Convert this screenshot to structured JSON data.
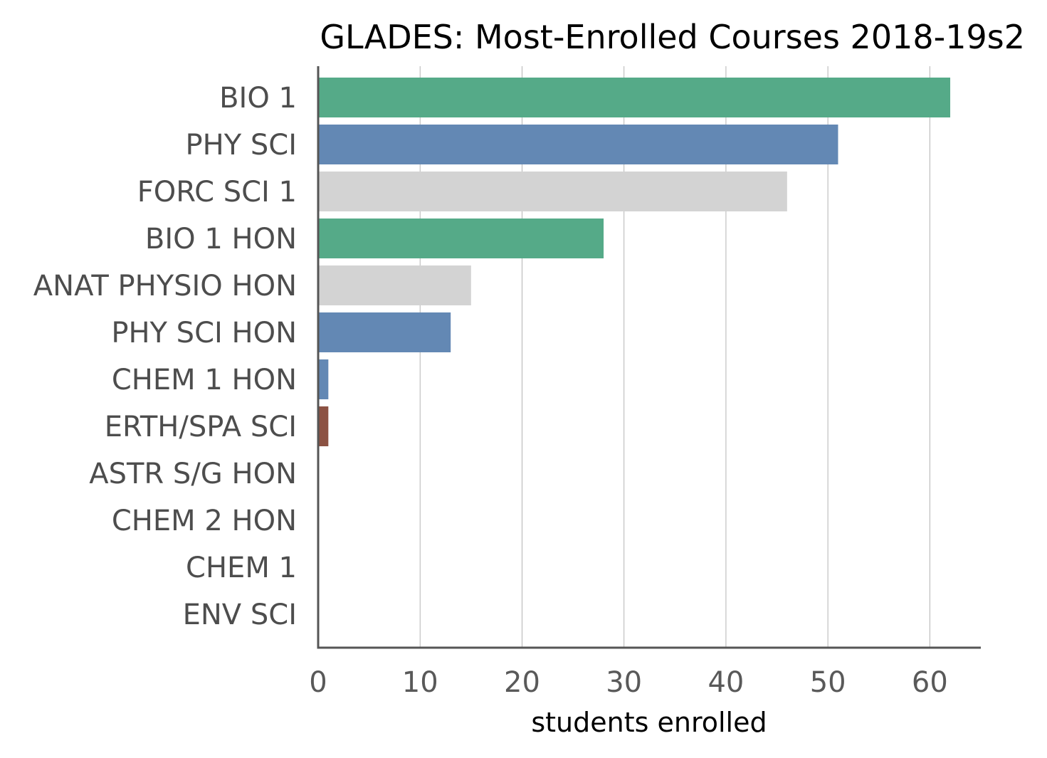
{
  "chart_data": {
    "type": "bar",
    "orientation": "horizontal",
    "title": "GLADES: Most-Enrolled Courses 2018-19s2",
    "xlabel": "students enrolled",
    "ylabel": "",
    "xlim": [
      0,
      65
    ],
    "xticks": [
      0,
      10,
      20,
      30,
      40,
      50,
      60
    ],
    "grid": "vertical",
    "categories": [
      "BIO 1",
      "PHY SCI",
      "FORC SCI 1",
      "BIO 1 HON",
      "ANAT PHYSIO HON",
      "PHY SCI HON",
      "CHEM 1 HON",
      "ERTH/SPA SCI",
      "ASTR S/G HON",
      "CHEM 2 HON",
      "CHEM 1",
      "ENV SCI"
    ],
    "values": [
      62,
      51,
      46,
      28,
      15,
      13,
      1,
      1,
      0,
      0,
      0,
      0
    ],
    "colors": [
      "#55aa88",
      "#6388b4",
      "#d3d3d3",
      "#55aa88",
      "#d3d3d3",
      "#6388b4",
      "#6388b4",
      "#8c5243",
      "#ffffff",
      "#ffffff",
      "#ffffff",
      "#ffffff"
    ]
  }
}
